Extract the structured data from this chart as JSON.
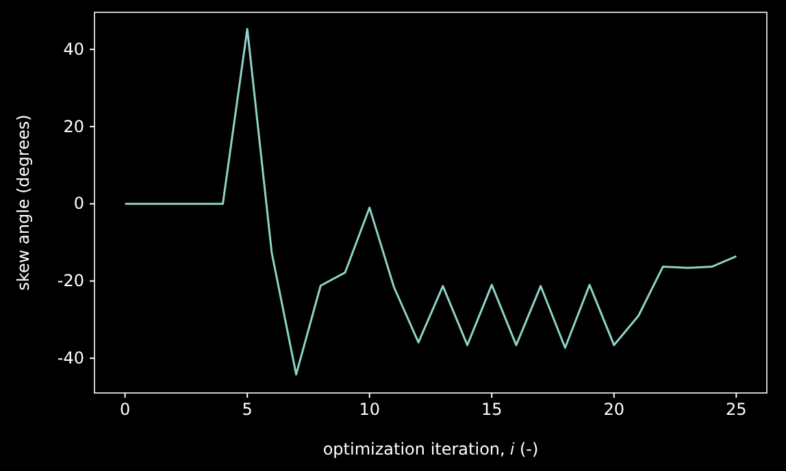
{
  "chart_data": {
    "type": "line",
    "xlabel": "optimization iteration, 𝑖 (-)",
    "ylabel": "skew angle (degrees)",
    "x": [
      0,
      1,
      2,
      3,
      4,
      5,
      6,
      7,
      8,
      9,
      10,
      11,
      12,
      13,
      14,
      15,
      16,
      17,
      18,
      19,
      20,
      21,
      22,
      23,
      24,
      25
    ],
    "series": [
      {
        "color": "#8dd3c7",
        "values": [
          0,
          0,
          0,
          0,
          0,
          45.3,
          -12.7,
          -44.2,
          -21.2,
          -17.8,
          -1,
          -21.6,
          -35.9,
          -21.3,
          -36.6,
          -21,
          -36.6,
          -21.3,
          -37.3,
          -21,
          -36.6,
          -29,
          -16.3,
          -16.6,
          -16.3,
          -13.6
        ]
      }
    ],
    "xlim": [
      -1.25,
      26.25
    ],
    "ylim": [
      -49,
      49.6
    ],
    "xticks": [
      0,
      5,
      10,
      15,
      20,
      25
    ],
    "yticks": [
      -40,
      -20,
      0,
      20,
      40
    ],
    "grid": false,
    "marker": "none",
    "line_style": "solid"
  }
}
